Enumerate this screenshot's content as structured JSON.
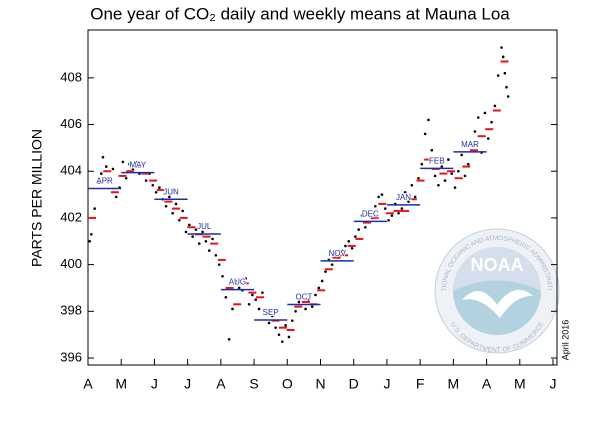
{
  "chart_data": {
    "type": "scatter",
    "title": "One year of CO₂ daily and weekly means at Mauna Loa",
    "ylabel": "PARTS PER MILLION",
    "annotation": "April 2016",
    "logo": {
      "name": "NOAA",
      "ring_top": "NATIONAL OCEANIC AND ATMOSPHERIC ADMINISTRATION",
      "ring_bottom": "U.S. DEPARTMENT OF COMMERCE"
    },
    "xlim": [
      0,
      14.12
    ],
    "xticks": [
      {
        "value": 0,
        "label": "A"
      },
      {
        "value": 1,
        "label": "M"
      },
      {
        "value": 2,
        "label": "J"
      },
      {
        "value": 3,
        "label": "J"
      },
      {
        "value": 4,
        "label": "A"
      },
      {
        "value": 5,
        "label": "S"
      },
      {
        "value": 6,
        "label": "O"
      },
      {
        "value": 7,
        "label": "N"
      },
      {
        "value": 8,
        "label": "D"
      },
      {
        "value": 9,
        "label": "J"
      },
      {
        "value": 10,
        "label": "F"
      },
      {
        "value": 11,
        "label": "M"
      },
      {
        "value": 12,
        "label": "A"
      },
      {
        "value": 13,
        "label": "M"
      },
      {
        "value": 14,
        "label": "J"
      }
    ],
    "ylim": [
      395.7,
      410.05
    ],
    "yticks": [
      396,
      398,
      400,
      402,
      404,
      406,
      408
    ],
    "grid": false,
    "series": [
      {
        "marker": "dot",
        "color": "#000000",
        "x": [
          0.05,
          0.1,
          0.2,
          0.3,
          0.4,
          0.45,
          0.55,
          0.65,
          0.75,
          0.85,
          0.95,
          1.05,
          1.15,
          1.25,
          1.35,
          1.45,
          1.55,
          1.65,
          1.75,
          1.85,
          1.95,
          2.05,
          2.15,
          2.25,
          2.35,
          2.45,
          2.55,
          2.65,
          2.75,
          2.85,
          2.95,
          3.05,
          3.15,
          3.25,
          3.35,
          3.45,
          3.55,
          3.65,
          3.75,
          3.85,
          3.95,
          4.05,
          4.15,
          4.25,
          4.35,
          4.45,
          4.55,
          4.65,
          4.75,
          4.85,
          4.95,
          5.05,
          5.15,
          5.25,
          5.35,
          5.45,
          5.55,
          5.65,
          5.75,
          5.85,
          5.95,
          6.05,
          6.15,
          6.25,
          6.35,
          6.45,
          6.55,
          6.65,
          6.75,
          6.85,
          6.95,
          7.05,
          7.15,
          7.25,
          7.35,
          7.45,
          7.55,
          7.65,
          7.75,
          7.85,
          7.95,
          8.05,
          8.15,
          8.25,
          8.35,
          8.45,
          8.55,
          8.65,
          8.75,
          8.85,
          8.95,
          9.05,
          9.15,
          9.25,
          9.35,
          9.45,
          9.55,
          9.65,
          9.75,
          9.85,
          9.95,
          10.05,
          10.15,
          10.25,
          10.35,
          10.45,
          10.55,
          10.65,
          10.75,
          10.85,
          10.95,
          11.05,
          11.15,
          11.25,
          11.35,
          11.45,
          11.55,
          11.65,
          11.75,
          11.85,
          11.95,
          12.05,
          12.15,
          12.25,
          12.35,
          12.45,
          12.5,
          12.55,
          12.6,
          12.65
        ],
        "values": [
          401.0,
          401.3,
          402.4,
          403.6,
          403.9,
          404.6,
          404.2,
          403.7,
          404.1,
          402.9,
          403.3,
          404.4,
          403.7,
          404.3,
          404.1,
          404.4,
          403.9,
          404.2,
          403.6,
          403.9,
          403.4,
          403.1,
          403.3,
          402.8,
          402.5,
          402.9,
          402.2,
          402.6,
          401.9,
          402.3,
          401.4,
          401.7,
          401.2,
          401.5,
          400.9,
          401.4,
          401.0,
          400.6,
          401.1,
          400.4,
          400.0,
          399.5,
          398.6,
          396.8,
          398.1,
          399.3,
          399.0,
          398.9,
          399.4,
          398.3,
          398.7,
          398.5,
          398.1,
          398.8,
          397.9,
          397.5,
          397.8,
          397.3,
          397.0,
          396.7,
          397.4,
          396.9,
          397.6,
          398.0,
          398.4,
          398.6,
          398.1,
          398.5,
          398.2,
          398.7,
          399.0,
          399.3,
          399.7,
          400.2,
          400.0,
          400.5,
          400.3,
          400.6,
          400.8,
          401.0,
          400.7,
          401.2,
          401.5,
          402.1,
          401.6,
          402.3,
          402.0,
          402.5,
          402.9,
          403.0,
          402.4,
          401.9,
          402.1,
          402.6,
          402.2,
          402.4,
          403.1,
          402.7,
          403.4,
          402.9,
          403.7,
          404.3,
          405.6,
          406.2,
          404.9,
          403.8,
          403.4,
          404.2,
          403.6,
          404.5,
          403.9,
          403.3,
          404.0,
          404.7,
          403.8,
          404.3,
          405.1,
          405.7,
          406.3,
          404.8,
          406.5,
          405.4,
          406.1,
          406.8,
          408.1,
          409.3,
          408.9,
          408.2,
          407.6,
          407.2
        ]
      },
      {
        "marker": "dash",
        "color": "#e8141c",
        "x": [
          0.12,
          0.35,
          0.58,
          0.81,
          1.04,
          1.27,
          1.5,
          1.73,
          1.96,
          2.19,
          2.42,
          2.65,
          2.88,
          3.11,
          3.34,
          3.57,
          3.8,
          4.03,
          4.26,
          4.49,
          4.72,
          4.95,
          5.18,
          5.41,
          5.64,
          5.87,
          6.1,
          6.33,
          6.56,
          6.79,
          7.02,
          7.25,
          7.48,
          7.71,
          7.94,
          8.17,
          8.4,
          8.63,
          8.86,
          9.09,
          9.32,
          9.55,
          9.78,
          10.01,
          10.24,
          10.47,
          10.7,
          10.93,
          11.16,
          11.39,
          11.62,
          11.85,
          12.08,
          12.31,
          12.54
        ],
        "values": [
          402.0,
          403.5,
          404.0,
          403.1,
          403.8,
          404.0,
          404.2,
          403.9,
          403.6,
          403.2,
          402.7,
          402.4,
          402.0,
          401.6,
          401.3,
          401.2,
          400.9,
          400.2,
          399.0,
          398.3,
          399.2,
          398.8,
          398.6,
          398.0,
          397.6,
          397.3,
          397.2,
          398.2,
          398.4,
          398.3,
          398.9,
          399.8,
          400.3,
          400.4,
          400.8,
          401.1,
          401.8,
          402.0,
          402.6,
          402.2,
          402.3,
          402.3,
          402.8,
          403.6,
          404.5,
          404.1,
          403.9,
          404.0,
          403.7,
          404.2,
          404.9,
          405.5,
          405.8,
          406.6,
          408.7
        ]
      },
      {
        "marker": "month-line",
        "color": "#1c2fa8",
        "x": [
          0,
          1,
          2,
          3,
          4,
          5,
          6,
          7,
          8,
          9,
          10,
          11
        ],
        "labels": [
          "APR",
          "MAY",
          "JUN",
          "JUL",
          "AUG",
          "SEP",
          "OCT",
          "NOV",
          "DEC",
          "JAN",
          "FEB",
          "MAR"
        ],
        "values": [
          403.26,
          403.94,
          402.8,
          401.31,
          398.93,
          397.63,
          398.29,
          400.16,
          401.85,
          402.56,
          404.12,
          404.83
        ]
      }
    ]
  }
}
